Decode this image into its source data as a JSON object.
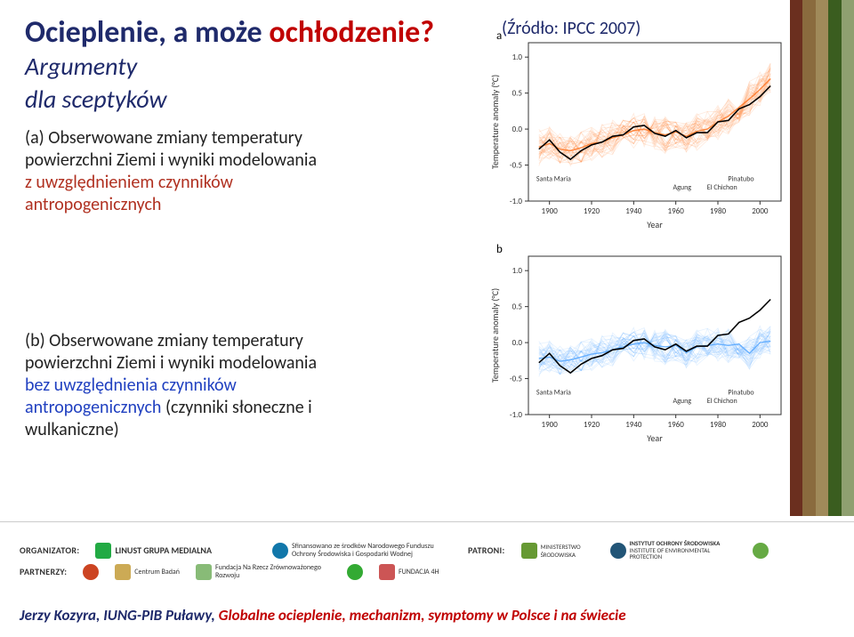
{
  "title": {
    "part1": "Ocieplenie,",
    "part1_color": "#1f2a6b",
    "part2": " a może ",
    "part2_color": "#1f2a6b",
    "part3": "ochłodzenie?",
    "part3_color": "#c00000"
  },
  "subtitle1": "Argumenty",
  "subtitle2": "dla sceptyków",
  "source": "(Źródło: IPCC 2007)",
  "para_a": {
    "line1": "(a) Obserwowane zmiany temperatury",
    "line2": "powierzchni Ziemi i wyniki modelowania",
    "line3a": "z uwzględnieniem czynników",
    "line3b": "antropogenicznych"
  },
  "para_b": {
    "line1": "(b) Obserwowane zmiany temperatury",
    "line2": "powierzchni Ziemi i wyniki modelowania",
    "line3a": "bez uwzględnienia czynników",
    "line3b": "antropogenicznych",
    "line4": " (czynniki słoneczne i",
    "line5": "wulkaniczne)"
  },
  "chart_common": {
    "xlabel": "Year",
    "ylabel": "Temperature anomaly (°C)",
    "xlim": [
      1890,
      2010
    ],
    "ylim": [
      -1.0,
      1.2
    ],
    "xticks": [
      1900,
      1920,
      1940,
      1960,
      1980,
      2000
    ],
    "yticks": [
      -1.0,
      -0.5,
      0.0,
      0.5,
      1.0
    ],
    "grid_color": "#d8d8d8",
    "bg": "#ffffff",
    "axis_color": "#333333",
    "obs_color": "#000000",
    "obs_width": 1.6,
    "ensemble_alpha": 0.04,
    "ensemble_width": 0.8,
    "volcano_labels": [
      "Santa Maria",
      "Agung",
      "Pinatubo",
      "El Chichon"
    ],
    "volcano_years": [
      1902,
      1963,
      1991,
      1982
    ],
    "label_fontsize": 9
  },
  "chart_a": {
    "panel_letter": "a",
    "ensemble_color": "#ff7a2a",
    "obs": [
      [
        1895,
        -0.28
      ],
      [
        1900,
        -0.15
      ],
      [
        1905,
        -0.32
      ],
      [
        1910,
        -0.42
      ],
      [
        1915,
        -0.3
      ],
      [
        1920,
        -0.22
      ],
      [
        1925,
        -0.18
      ],
      [
        1930,
        -0.1
      ],
      [
        1935,
        -0.08
      ],
      [
        1940,
        0.03
      ],
      [
        1945,
        0.05
      ],
      [
        1950,
        -0.06
      ],
      [
        1955,
        -0.1
      ],
      [
        1960,
        -0.02
      ],
      [
        1965,
        -0.12
      ],
      [
        1970,
        -0.05
      ],
      [
        1975,
        -0.05
      ],
      [
        1980,
        0.1
      ],
      [
        1985,
        0.12
      ],
      [
        1990,
        0.28
      ],
      [
        1995,
        0.34
      ],
      [
        2000,
        0.45
      ],
      [
        2005,
        0.6
      ]
    ],
    "ensemble_center": [
      [
        1895,
        -0.25
      ],
      [
        1900,
        -0.2
      ],
      [
        1905,
        -0.28
      ],
      [
        1910,
        -0.3
      ],
      [
        1915,
        -0.26
      ],
      [
        1920,
        -0.2
      ],
      [
        1925,
        -0.18
      ],
      [
        1930,
        -0.12
      ],
      [
        1935,
        -0.08
      ],
      [
        1940,
        -0.02
      ],
      [
        1945,
        0.0
      ],
      [
        1950,
        -0.05
      ],
      [
        1955,
        -0.08
      ],
      [
        1960,
        -0.04
      ],
      [
        1965,
        -0.1
      ],
      [
        1970,
        -0.03
      ],
      [
        1975,
        0.0
      ],
      [
        1980,
        0.1
      ],
      [
        1985,
        0.18
      ],
      [
        1990,
        0.3
      ],
      [
        1995,
        0.42
      ],
      [
        2000,
        0.55
      ],
      [
        2005,
        0.7
      ]
    ],
    "ensemble_n": 40,
    "ensemble_spread": 0.42
  },
  "chart_b": {
    "panel_letter": "b",
    "ensemble_color": "#5aa8ff",
    "obs": [
      [
        1895,
        -0.28
      ],
      [
        1900,
        -0.15
      ],
      [
        1905,
        -0.32
      ],
      [
        1910,
        -0.42
      ],
      [
        1915,
        -0.3
      ],
      [
        1920,
        -0.22
      ],
      [
        1925,
        -0.18
      ],
      [
        1930,
        -0.1
      ],
      [
        1935,
        -0.08
      ],
      [
        1940,
        0.03
      ],
      [
        1945,
        0.05
      ],
      [
        1950,
        -0.06
      ],
      [
        1955,
        -0.1
      ],
      [
        1960,
        -0.02
      ],
      [
        1965,
        -0.12
      ],
      [
        1970,
        -0.05
      ],
      [
        1975,
        -0.05
      ],
      [
        1980,
        0.1
      ],
      [
        1985,
        0.12
      ],
      [
        1990,
        0.28
      ],
      [
        1995,
        0.34
      ],
      [
        2000,
        0.45
      ],
      [
        2005,
        0.6
      ]
    ],
    "ensemble_center": [
      [
        1895,
        -0.22
      ],
      [
        1900,
        -0.2
      ],
      [
        1905,
        -0.26
      ],
      [
        1910,
        -0.24
      ],
      [
        1915,
        -0.2
      ],
      [
        1920,
        -0.16
      ],
      [
        1925,
        -0.14
      ],
      [
        1930,
        -0.1
      ],
      [
        1935,
        -0.06
      ],
      [
        1940,
        -0.02
      ],
      [
        1945,
        0.0
      ],
      [
        1950,
        -0.04
      ],
      [
        1955,
        -0.06
      ],
      [
        1960,
        -0.04
      ],
      [
        1965,
        -0.14
      ],
      [
        1970,
        -0.06
      ],
      [
        1975,
        -0.04
      ],
      [
        1980,
        -0.02
      ],
      [
        1985,
        -0.04
      ],
      [
        1990,
        -0.02
      ],
      [
        1995,
        -0.15
      ],
      [
        2000,
        0.0
      ],
      [
        2005,
        0.02
      ]
    ],
    "ensemble_n": 40,
    "ensemble_spread": 0.4
  },
  "stripes": [
    "#6b2f1f",
    "#8a6b3e",
    "#a08a5a",
    "#3a5d1f",
    "#8fa070"
  ],
  "sponsors": {
    "org_label": "ORGANIZATOR:",
    "org_name": "LINUST GRUPA MEDIALNA",
    "funded": "Sfinansowano ze środków Narodowego Funduszu Ochrony Środowiska i Gospodarki Wodnej",
    "pat_label": "PATRONI:",
    "pat1": "MINISTERSTWO ŚRODOWISKA",
    "pat2": "INSTYTUT OCHRONY ŚRODOWISKA",
    "pat2b": "INSTITUTE OF ENVIRONMENTAL PROTECTION",
    "par_label": "PARTNERZY:",
    "par1": "Centrum Badań",
    "par2": "Fundacja Na Rzecz Zrównoważonego Rozwoju",
    "par3": "FUNDACJA 4H"
  },
  "footer": {
    "text": "Jerzy Kozyra, IUNG-PIB Puławy, Globalne ocieplenie, mechanizm, symptomy w Polsce i na świecie",
    "color1": "#1f2a6b",
    "color2": "#c00000"
  }
}
